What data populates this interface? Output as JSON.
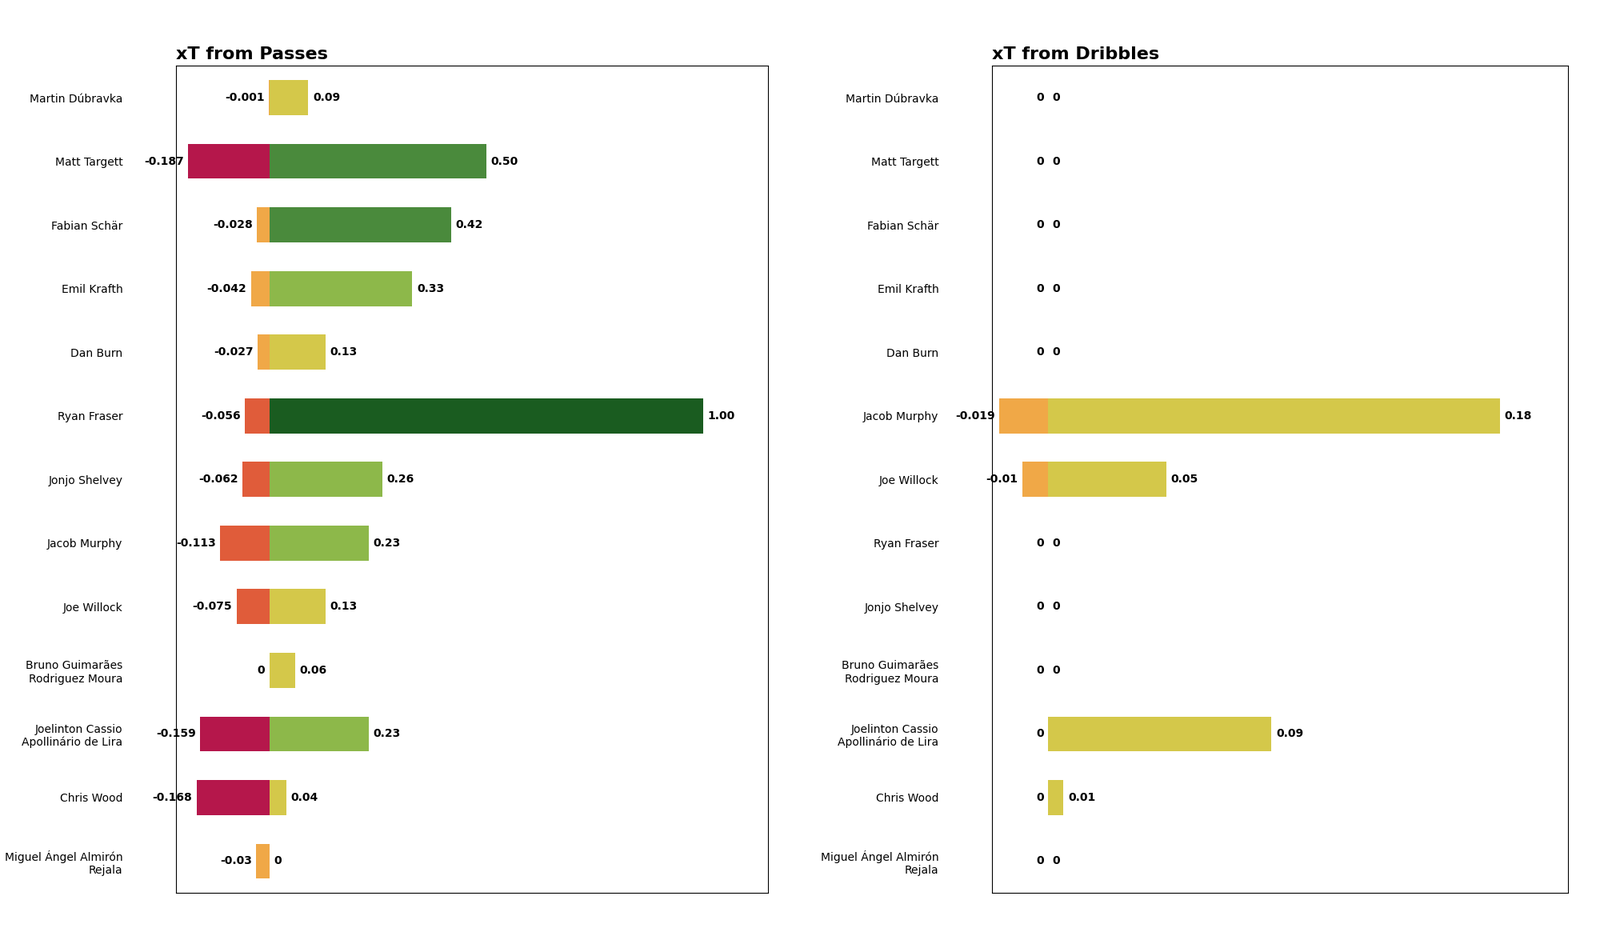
{
  "chart_data": [
    {
      "type": "bar",
      "orientation": "horizontal",
      "title": "xT from Passes",
      "categories": [
        "Martin Dúbravka",
        "Matt Targett",
        "Fabian Schär",
        "Emil Krafth",
        "Dan Burn",
        "Ryan Fraser",
        "Jonjo Shelvey",
        "Jacob Murphy",
        "Joe Willock",
        "Bruno Guimarães\nRodriguez Moura",
        "Joelinton Cassio\nApollinário de Lira",
        "Chris Wood",
        "Miguel Ángel Almirón\nRejala"
      ],
      "series": [
        {
          "values": [
            -0.001,
            -0.187,
            -0.028,
            -0.042,
            -0.027,
            -0.056,
            -0.062,
            -0.113,
            -0.075,
            0,
            -0.159,
            -0.168,
            -0.03
          ],
          "value_labels": [
            "-0.001",
            "-0.187",
            "-0.028",
            "-0.042",
            "-0.027",
            "-0.056",
            "-0.062",
            "-0.113",
            "-0.075",
            "0",
            "-0.159",
            "-0.168",
            "-0.03"
          ],
          "colors": [
            "#f0a847",
            "#b5174b",
            "#f0a847",
            "#f0a847",
            "#f0a847",
            "#e05c3a",
            "#e05c3a",
            "#e05c3a",
            "#e05c3a",
            "#f0a847",
            "#b5174b",
            "#b5174b",
            "#f0a847"
          ]
        },
        {
          "values": [
            0.09,
            0.5,
            0.42,
            0.33,
            0.13,
            1.0,
            0.26,
            0.23,
            0.13,
            0.06,
            0.23,
            0.04,
            0.0
          ],
          "value_labels": [
            "0.09",
            "0.50",
            "0.42",
            "0.33",
            "0.13",
            "1.00",
            "0.26",
            "0.23",
            "0.13",
            "0.06",
            "0.23",
            "0.04",
            "0"
          ],
          "colors": [
            "#d4c84a",
            "#4a8a3c",
            "#4a8a3c",
            "#8db84a",
            "#d4c84a",
            "#1a5c20",
            "#8db84a",
            "#8db84a",
            "#d4c84a",
            "#d4c84a",
            "#8db84a",
            "#d4c84a",
            "#d4c84a"
          ]
        }
      ],
      "xlim": [
        -0.21505,
        1.15
      ],
      "tick_labels": "y",
      "data_labels": true
    },
    {
      "type": "bar",
      "orientation": "horizontal",
      "title": "xT from Dribbles",
      "categories": [
        "Martin Dúbravka",
        "Matt Targett",
        "Fabian Schär",
        "Emil Krafth",
        "Dan Burn",
        "Jacob Murphy",
        "Joe Willock",
        "Ryan Fraser",
        "Jonjo Shelvey",
        "Bruno Guimarães\nRodriguez Moura",
        "Joelinton Cassio\nApollinário de Lira",
        "Chris Wood",
        "Miguel Ángel Almirón\nRejala"
      ],
      "series": [
        {
          "values": [
            0,
            0,
            0,
            0,
            0,
            -0.019,
            -0.01,
            0,
            0,
            0,
            0,
            0,
            0
          ],
          "value_labels": [
            "0",
            "0",
            "0",
            "0",
            "0",
            "-0.019",
            "-0.01",
            "0",
            "0",
            "0",
            "0",
            "0",
            "0"
          ],
          "colors": [
            "#f0a847",
            "#f0a847",
            "#f0a847",
            "#f0a847",
            "#f0a847",
            "#f0a847",
            "#f0a847",
            "#f0a847",
            "#f0a847",
            "#f0a847",
            "#f0a847",
            "#f0a847",
            "#f0a847"
          ]
        },
        {
          "values": [
            0,
            0,
            0,
            0,
            0,
            0.176,
            0.046,
            0,
            0,
            0,
            0.087,
            0.006,
            0
          ],
          "value_labels": [
            "0",
            "0",
            "0",
            "0",
            "0",
            "0.18",
            "0.05",
            "0",
            "0",
            "0",
            "0.09",
            "0.01",
            "0"
          ],
          "colors": [
            "#d4c84a",
            "#d4c84a",
            "#d4c84a",
            "#d4c84a",
            "#d4c84a",
            "#d4c84a",
            "#d4c84a",
            "#d4c84a",
            "#d4c84a",
            "#d4c84a",
            "#d4c84a",
            "#d4c84a",
            "#d4c84a"
          ]
        }
      ],
      "xlim": [
        -0.02185,
        0.2024
      ],
      "tick_labels": "y",
      "data_labels": true
    }
  ]
}
